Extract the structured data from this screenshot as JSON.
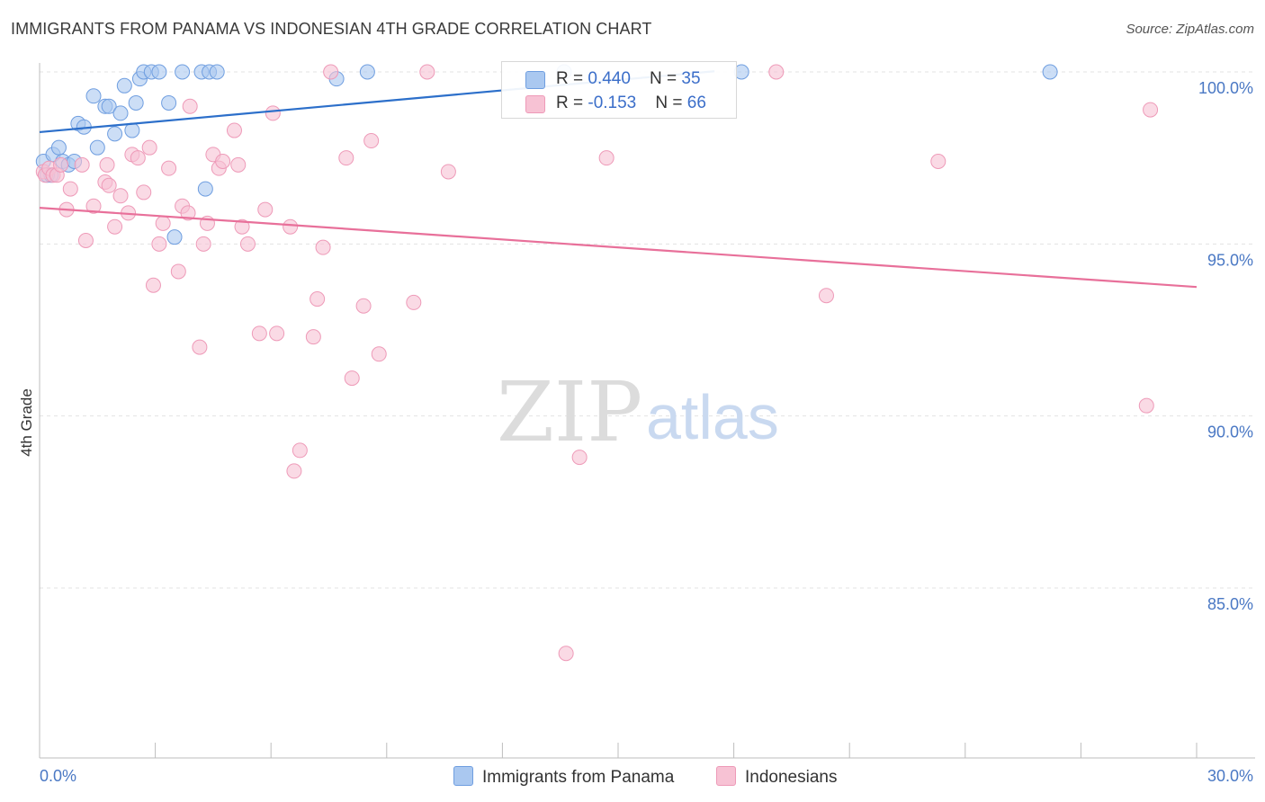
{
  "title": "IMMIGRANTS FROM PANAMA VS INDONESIAN 4TH GRADE CORRELATION CHART",
  "source": "Source: ZipAtlas.com",
  "watermark": {
    "zip": "ZIP",
    "atlas": "atlas"
  },
  "legend": {
    "panama": {
      "r_label": "R = ",
      "r_value": "0.440",
      "n_label": "N = ",
      "n_value": "35"
    },
    "indonesian": {
      "r_label": "R = ",
      "r_value": "-0.153",
      "n_label": "N = ",
      "n_value": "66"
    }
  },
  "bottom_legend": {
    "panama": "Immigrants from Panama",
    "indonesian": "Indonesians"
  },
  "colors": {
    "panama_fill": "#aac8f0",
    "panama_stroke": "#6f9ee0",
    "panama_line": "#2c6fca",
    "indo_fill": "#f7c2d4",
    "indo_stroke": "#ee9ab8",
    "indo_line": "#e8709a",
    "tick_text": "#4a78c4",
    "grid": "#e3e3e3"
  },
  "chart_data": {
    "type": "scatter",
    "title": "IMMIGRANTS FROM PANAMA VS INDONESIAN 4TH GRADE CORRELATION CHART",
    "xlabel": "",
    "ylabel": "4th Grade",
    "xlim": [
      0,
      30
    ],
    "ylim": [
      80,
      100.4
    ],
    "x_tick_labels": [
      {
        "value": 0,
        "label": "0.0%"
      },
      {
        "value": 30,
        "label": "30.0%"
      }
    ],
    "y_tick_labels": [
      {
        "value": 100,
        "label": "100.0%"
      },
      {
        "value": 95,
        "label": "95.0%"
      },
      {
        "value": 90,
        "label": "90.0%"
      },
      {
        "value": 85,
        "label": "85.0%"
      }
    ],
    "series": [
      {
        "name": "Immigrants from Panama",
        "r": 0.44,
        "n": 35,
        "trend": {
          "x": [
            0,
            17.5
          ],
          "y": [
            98.25,
            100.02
          ]
        },
        "points": [
          [
            0.1,
            97.4
          ],
          [
            0.2,
            97.0
          ],
          [
            0.3,
            97.0
          ],
          [
            0.35,
            97.6
          ],
          [
            0.5,
            97.8
          ],
          [
            0.6,
            97.4
          ],
          [
            0.75,
            97.3
          ],
          [
            0.9,
            97.4
          ],
          [
            1.0,
            98.5
          ],
          [
            1.15,
            98.4
          ],
          [
            1.4,
            99.3
          ],
          [
            1.5,
            97.8
          ],
          [
            1.7,
            99.0
          ],
          [
            1.8,
            99.0
          ],
          [
            1.95,
            98.2
          ],
          [
            2.1,
            98.8
          ],
          [
            2.2,
            99.6
          ],
          [
            2.4,
            98.3
          ],
          [
            2.5,
            99.1
          ],
          [
            2.6,
            99.8
          ],
          [
            2.7,
            100.0
          ],
          [
            2.9,
            100.0
          ],
          [
            3.1,
            100.0
          ],
          [
            3.35,
            99.1
          ],
          [
            3.5,
            95.2
          ],
          [
            3.7,
            100.0
          ],
          [
            4.2,
            100.0
          ],
          [
            4.3,
            96.6
          ],
          [
            4.4,
            100.0
          ],
          [
            4.6,
            100.0
          ],
          [
            7.7,
            99.8
          ],
          [
            8.5,
            100.0
          ],
          [
            13.6,
            100.0
          ],
          [
            18.2,
            100.0
          ],
          [
            26.2,
            100.0
          ]
        ]
      },
      {
        "name": "Indonesians",
        "r": -0.153,
        "n": 66,
        "trend": {
          "x": [
            0,
            30
          ],
          "y": [
            96.05,
            93.75
          ]
        },
        "points": [
          [
            0.1,
            97.1
          ],
          [
            0.15,
            97.0
          ],
          [
            0.25,
            97.2
          ],
          [
            0.35,
            97.0
          ],
          [
            0.45,
            97.0
          ],
          [
            0.55,
            97.3
          ],
          [
            0.7,
            96.0
          ],
          [
            0.8,
            96.6
          ],
          [
            1.1,
            97.3
          ],
          [
            1.2,
            95.1
          ],
          [
            1.4,
            96.1
          ],
          [
            1.7,
            96.8
          ],
          [
            1.75,
            97.3
          ],
          [
            1.8,
            96.7
          ],
          [
            1.95,
            95.5
          ],
          [
            2.1,
            96.4
          ],
          [
            2.3,
            95.9
          ],
          [
            2.4,
            97.6
          ],
          [
            2.55,
            97.5
          ],
          [
            2.7,
            96.5
          ],
          [
            2.85,
            97.8
          ],
          [
            2.95,
            93.8
          ],
          [
            3.1,
            95.0
          ],
          [
            3.2,
            95.6
          ],
          [
            3.35,
            97.2
          ],
          [
            3.6,
            94.2
          ],
          [
            3.7,
            96.1
          ],
          [
            3.85,
            95.9
          ],
          [
            3.9,
            99.0
          ],
          [
            4.15,
            92.0
          ],
          [
            4.25,
            95.0
          ],
          [
            4.35,
            95.6
          ],
          [
            4.5,
            97.6
          ],
          [
            4.65,
            97.2
          ],
          [
            4.75,
            97.4
          ],
          [
            5.05,
            98.3
          ],
          [
            5.15,
            97.3
          ],
          [
            5.25,
            95.5
          ],
          [
            5.4,
            95.0
          ],
          [
            5.7,
            92.4
          ],
          [
            5.85,
            96.0
          ],
          [
            6.05,
            98.8
          ],
          [
            6.15,
            92.4
          ],
          [
            6.5,
            95.5
          ],
          [
            6.6,
            88.4
          ],
          [
            6.75,
            89.0
          ],
          [
            7.1,
            92.3
          ],
          [
            7.2,
            93.4
          ],
          [
            7.35,
            94.9
          ],
          [
            7.55,
            100.0
          ],
          [
            7.95,
            97.5
          ],
          [
            8.1,
            91.1
          ],
          [
            8.4,
            93.2
          ],
          [
            8.6,
            98.0
          ],
          [
            8.8,
            91.8
          ],
          [
            9.7,
            93.3
          ],
          [
            10.05,
            100.0
          ],
          [
            10.6,
            97.1
          ],
          [
            13.65,
            83.1
          ],
          [
            14.0,
            88.8
          ],
          [
            14.7,
            97.5
          ],
          [
            19.1,
            100.0
          ],
          [
            20.4,
            93.5
          ],
          [
            23.3,
            97.4
          ],
          [
            28.7,
            90.3
          ],
          [
            28.8,
            98.9
          ]
        ]
      }
    ]
  }
}
